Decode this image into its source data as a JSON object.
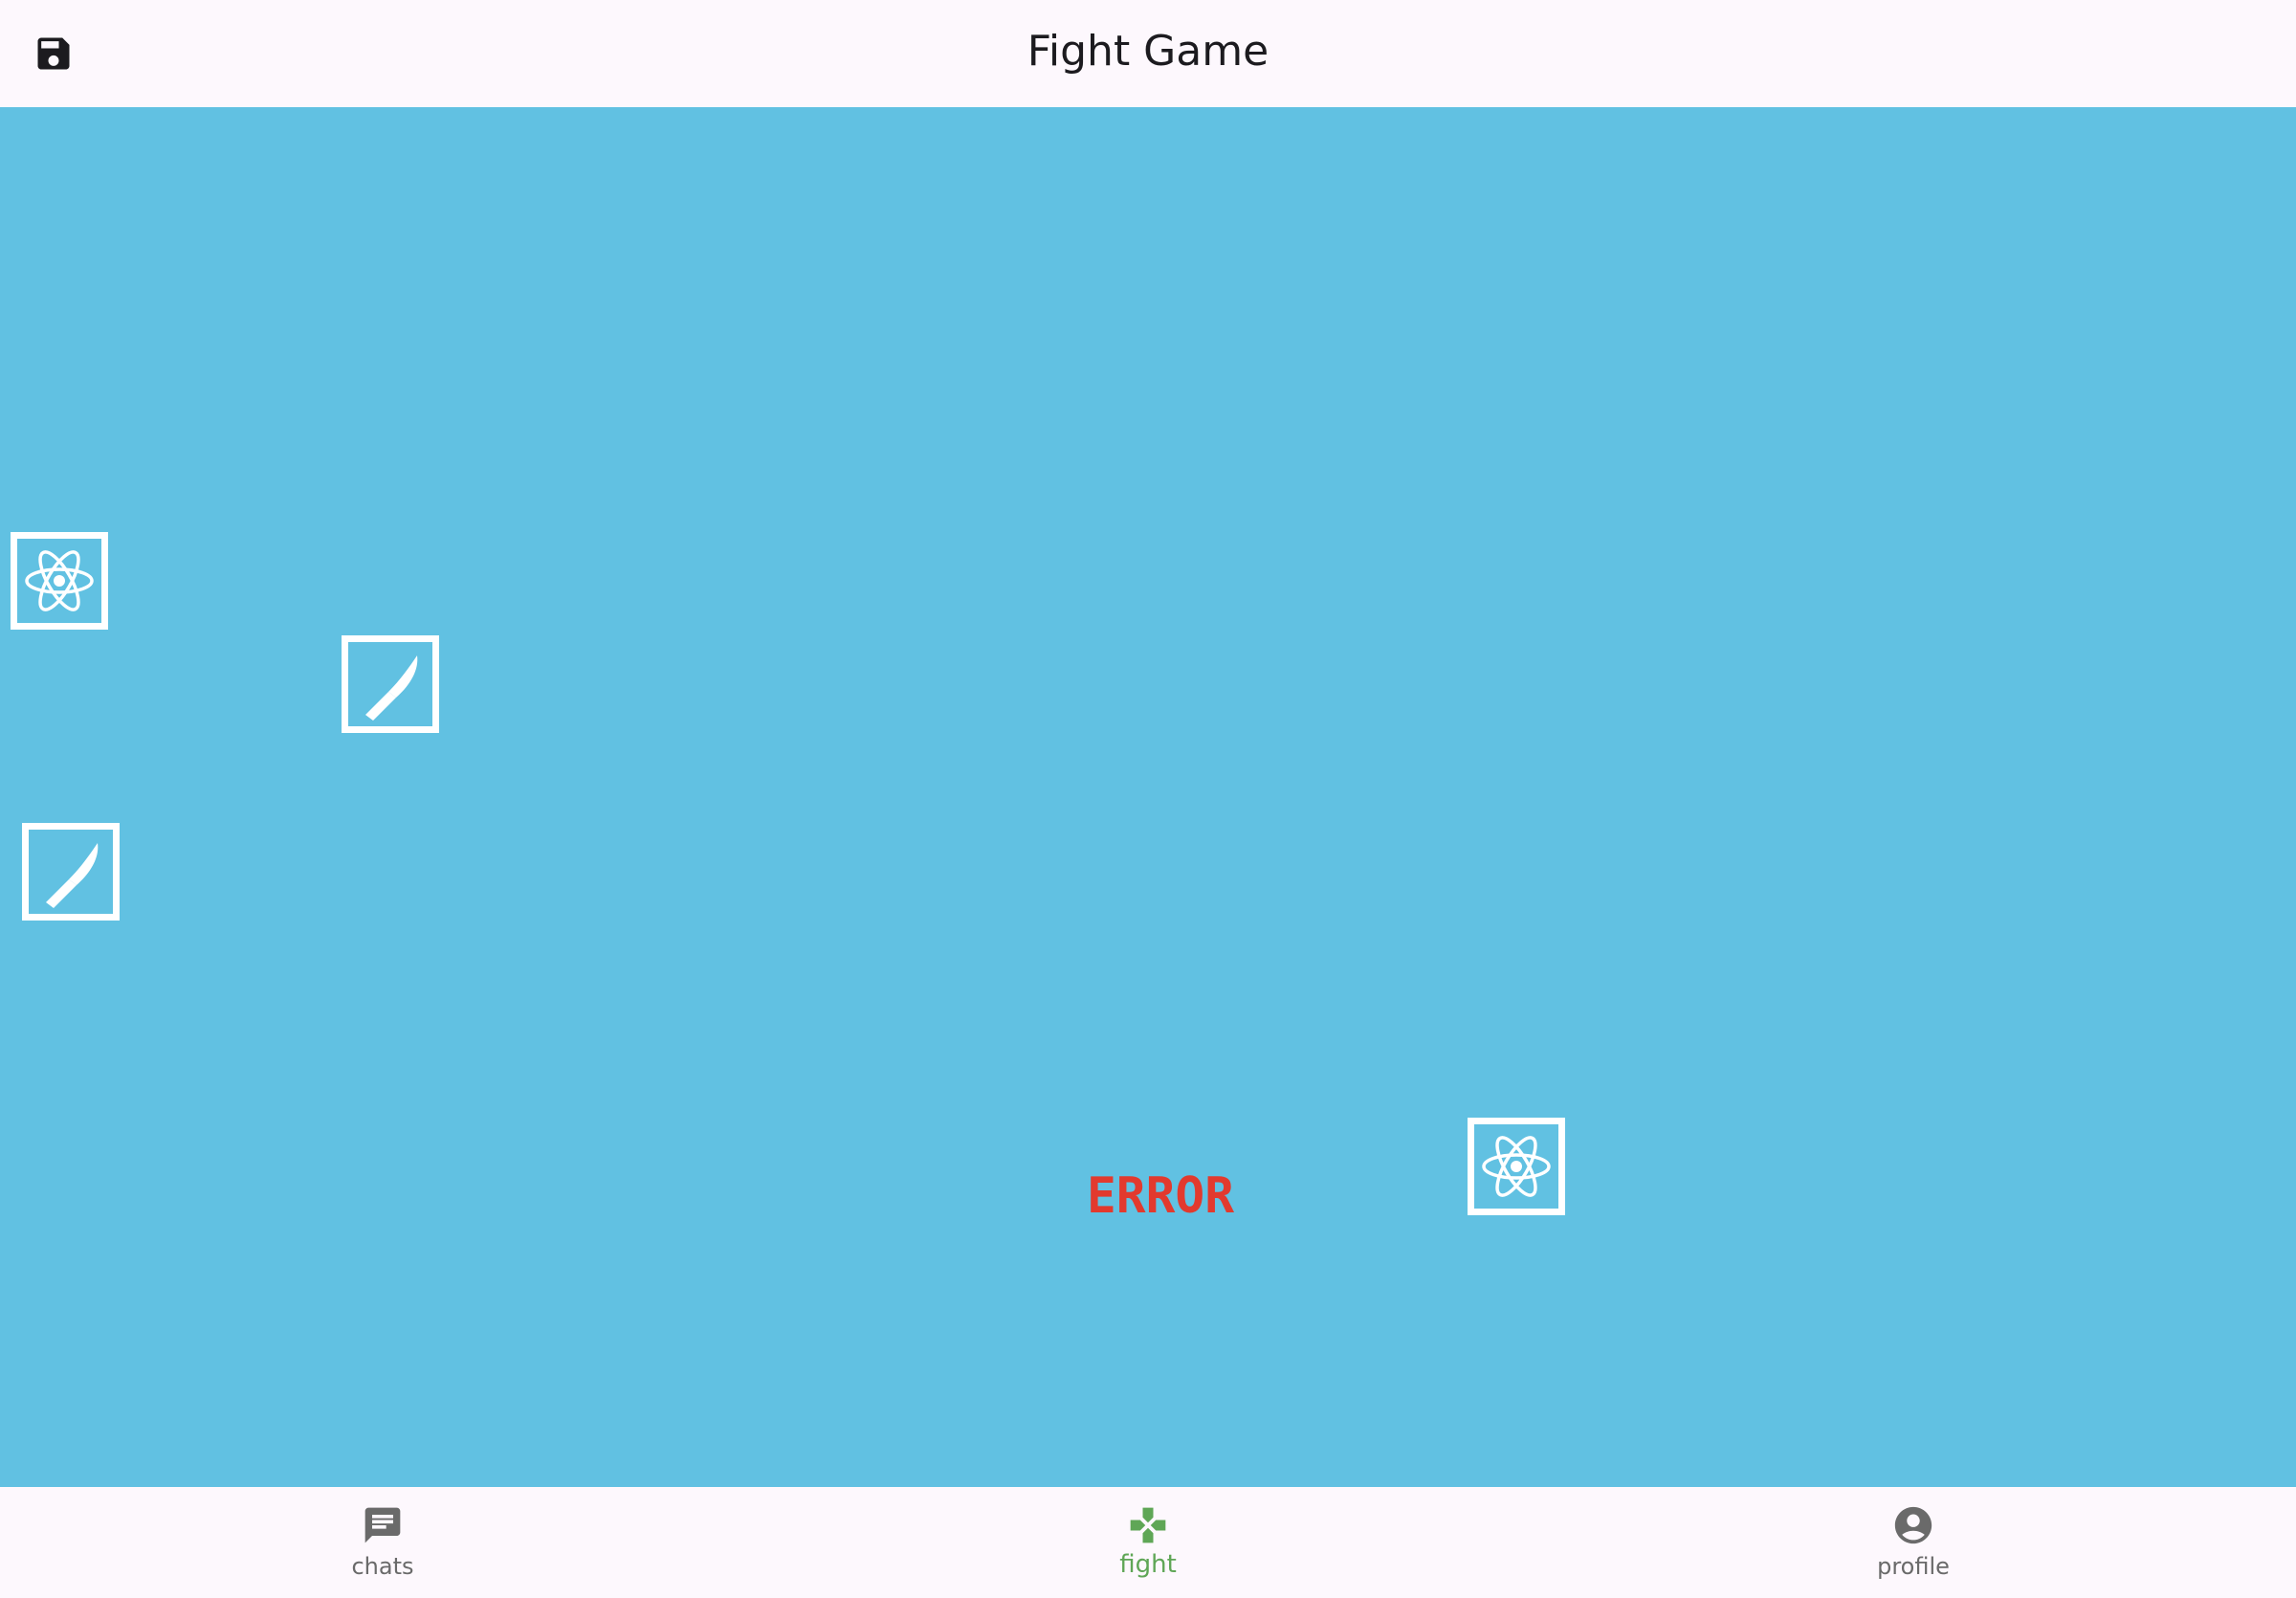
{
  "appbar": {
    "title": "Fight Game",
    "save_icon": "save-icon"
  },
  "arena": {
    "background_color": "#61c1e2",
    "tiles": [
      {
        "icon": "atom-icon"
      },
      {
        "icon": "knife-icon"
      },
      {
        "icon": "knife-icon"
      },
      {
        "icon": "atom-icon"
      }
    ],
    "status_text": "ERROR",
    "status_color": "#e23a2e"
  },
  "bottom_nav": {
    "items": [
      {
        "label": "chats",
        "icon": "chat-icon",
        "active": false
      },
      {
        "label": "fight",
        "icon": "gamepad-icon",
        "active": true
      },
      {
        "label": "profile",
        "icon": "account-circle-icon",
        "active": false
      }
    ],
    "active_color": "#5fa656",
    "inactive_color": "#6a6a6a"
  }
}
